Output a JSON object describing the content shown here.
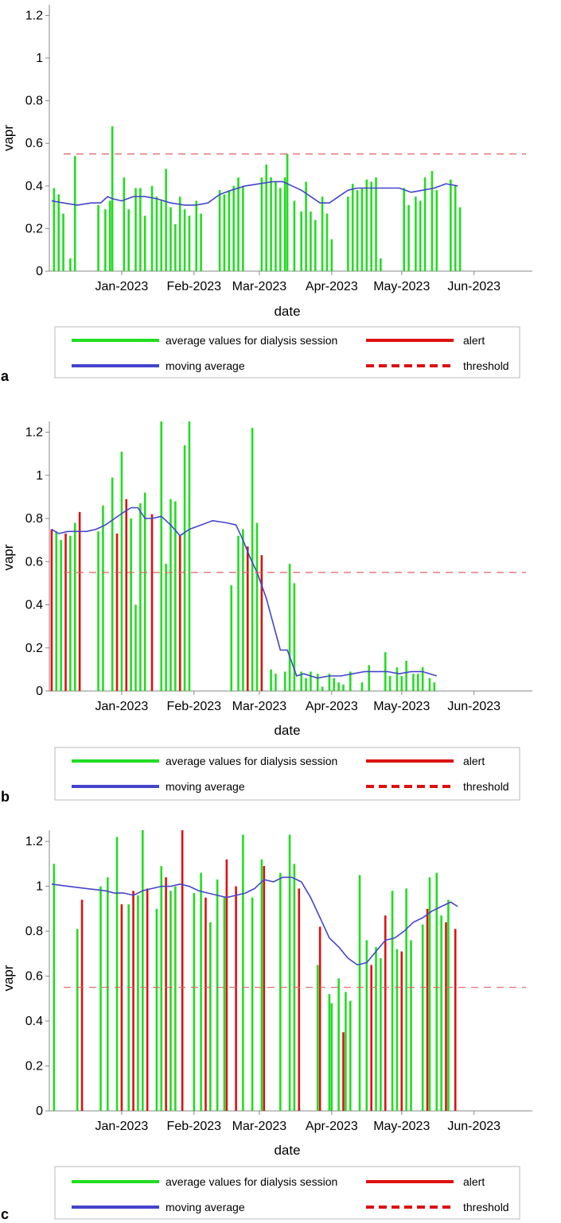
{
  "colors": {
    "session": "#22dd22",
    "alert": "#dd1111",
    "moving_average": "#4444cc",
    "threshold": "#e06060",
    "axis": "#888888"
  },
  "legend": {
    "session_label": "average values for dialysis session",
    "alert_label": "alert",
    "moving_average_label": "moving average",
    "threshold_label": "threshold"
  },
  "chart_data": [
    {
      "panel": "a",
      "type": "bar",
      "xlabel": "date",
      "ylabel": "vapr",
      "ylim": [
        0,
        1.25
      ],
      "yticks": [
        0,
        0.2,
        0.4,
        0.6,
        0.8,
        1,
        1.2
      ],
      "ytick_labels": [
        "0",
        "0.2",
        "0.4",
        "0.6",
        "0.8",
        "1",
        "1.2"
      ],
      "xlim": [
        0,
        207
      ],
      "xticks": [
        {
          "x": 31,
          "label": "Jan-2023"
        },
        {
          "x": 62,
          "label": "Feb-2023"
        },
        {
          "x": 90,
          "label": "Mar-2023"
        },
        {
          "x": 121,
          "label": "Apr-2023"
        },
        {
          "x": 151,
          "label": "May-2023"
        },
        {
          "x": 182,
          "label": "Jun-2023"
        }
      ],
      "threshold": 0.55,
      "session_bars": [
        [
          2,
          0.39
        ],
        [
          4,
          0.36
        ],
        [
          6,
          0.27
        ],
        [
          9,
          0.06
        ],
        [
          11,
          0.54
        ],
        [
          21,
          0.31
        ],
        [
          24,
          0.29
        ],
        [
          26,
          0.33
        ],
        [
          27,
          0.68
        ],
        [
          32,
          0.44
        ],
        [
          34,
          0.29
        ],
        [
          37,
          0.39
        ],
        [
          39,
          0.39
        ],
        [
          41,
          0.26
        ],
        [
          44,
          0.4
        ],
        [
          46,
          0.35
        ],
        [
          48,
          0.33
        ],
        [
          50,
          0.48
        ],
        [
          52,
          0.3
        ],
        [
          54,
          0.22
        ],
        [
          56,
          0.35
        ],
        [
          58,
          0.29
        ],
        [
          60,
          0.26
        ],
        [
          63,
          0.33
        ],
        [
          65,
          0.27
        ],
        [
          73,
          0.38
        ],
        [
          75,
          0.36
        ],
        [
          77,
          0.38
        ],
        [
          79,
          0.4
        ],
        [
          81,
          0.44
        ],
        [
          83,
          0.4
        ],
        [
          91,
          0.44
        ],
        [
          93,
          0.5
        ],
        [
          95,
          0.44
        ],
        [
          97,
          0.42
        ],
        [
          99,
          0.39
        ],
        [
          101,
          0.44
        ],
        [
          102,
          0.55
        ],
        [
          105,
          0.33
        ],
        [
          108,
          0.28
        ],
        [
          110,
          0.42
        ],
        [
          112,
          0.28
        ],
        [
          114,
          0.24
        ],
        [
          117,
          0.35
        ],
        [
          119,
          0.27
        ],
        [
          121,
          0.15
        ],
        [
          128,
          0.35
        ],
        [
          130,
          0.41
        ],
        [
          132,
          0.38
        ],
        [
          134,
          0.39
        ],
        [
          136,
          0.43
        ],
        [
          138,
          0.42
        ],
        [
          140,
          0.44
        ],
        [
          142,
          0.06
        ],
        [
          152,
          0.39
        ],
        [
          154,
          0.31
        ],
        [
          157,
          0.35
        ],
        [
          159,
          0.33
        ],
        [
          161,
          0.44
        ],
        [
          164,
          0.47
        ],
        [
          166,
          0.38
        ],
        [
          172,
          0.43
        ],
        [
          174,
          0.4
        ],
        [
          176,
          0.3
        ]
      ],
      "alert_bars": [],
      "moving_average": {
        "x": [
          1,
          6,
          12,
          18,
          22,
          25,
          27,
          31,
          36,
          41,
          46,
          52,
          58,
          63,
          68,
          73,
          78,
          84,
          90,
          96,
          100,
          104,
          108,
          112,
          116,
          120,
          124,
          128,
          132,
          136,
          140,
          145,
          150,
          155,
          160,
          165,
          170,
          175
        ],
        "y": [
          0.33,
          0.32,
          0.31,
          0.32,
          0.32,
          0.35,
          0.34,
          0.33,
          0.35,
          0.35,
          0.34,
          0.32,
          0.31,
          0.31,
          0.32,
          0.36,
          0.38,
          0.4,
          0.41,
          0.42,
          0.42,
          0.4,
          0.38,
          0.35,
          0.32,
          0.32,
          0.35,
          0.38,
          0.39,
          0.39,
          0.39,
          0.39,
          0.39,
          0.37,
          0.38,
          0.39,
          0.41,
          0.4
        ]
      },
      "legend_position": "bottom"
    },
    {
      "panel": "b",
      "type": "bar",
      "xlabel": "date",
      "ylabel": "vapr",
      "ylim": [
        0,
        1.25
      ],
      "yticks": [
        0,
        0.2,
        0.4,
        0.6,
        0.8,
        1,
        1.2
      ],
      "ytick_labels": [
        "0",
        "0.2",
        "0.4",
        "0.6",
        "0.8",
        "1",
        "1.2"
      ],
      "xlim": [
        0,
        207
      ],
      "xticks": [
        {
          "x": 31,
          "label": "Jan-2023"
        },
        {
          "x": 62,
          "label": "Feb-2023"
        },
        {
          "x": 90,
          "label": "Mar-2023"
        },
        {
          "x": 121,
          "label": "Apr-2023"
        },
        {
          "x": 151,
          "label": "May-2023"
        },
        {
          "x": 182,
          "label": "Jun-2023"
        }
      ],
      "threshold": 0.55,
      "session_bars": [
        [
          3,
          0.74
        ],
        [
          5,
          0.7
        ],
        [
          9,
          0.72
        ],
        [
          11,
          0.78
        ],
        [
          21,
          0.74
        ],
        [
          23,
          0.86
        ],
        [
          27,
          0.99
        ],
        [
          31,
          1.11
        ],
        [
          35,
          0.8
        ],
        [
          37,
          0.4
        ],
        [
          39,
          0.87
        ],
        [
          41,
          0.92
        ],
        [
          48,
          1.25
        ],
        [
          50,
          0.59
        ],
        [
          52,
          0.89
        ],
        [
          54,
          0.88
        ],
        [
          58,
          1.14
        ],
        [
          60,
          1.25
        ],
        [
          78,
          0.49
        ],
        [
          81,
          0.72
        ],
        [
          83,
          0.75
        ],
        [
          85,
          0.66
        ],
        [
          87,
          1.22
        ],
        [
          89,
          0.78
        ],
        [
          95,
          0.1
        ],
        [
          97,
          0.08
        ],
        [
          101,
          0.09
        ],
        [
          103,
          0.59
        ],
        [
          105,
          0.5
        ],
        [
          108,
          0.09
        ],
        [
          110,
          0.06
        ],
        [
          112,
          0.09
        ],
        [
          115,
          0.08
        ],
        [
          117,
          0.02
        ],
        [
          120,
          0.08
        ],
        [
          122,
          0.06
        ],
        [
          124,
          0.04
        ],
        [
          126,
          0.03
        ],
        [
          129,
          0.09
        ],
        [
          134,
          0.04
        ],
        [
          137,
          0.12
        ],
        [
          144,
          0.18
        ],
        [
          146,
          0.07
        ],
        [
          149,
          0.11
        ],
        [
          151,
          0.07
        ],
        [
          153,
          0.14
        ],
        [
          156,
          0.08
        ],
        [
          158,
          0.08
        ],
        [
          160,
          0.11
        ],
        [
          163,
          0.06
        ],
        [
          165,
          0.04
        ]
      ],
      "alert_bars": [
        [
          1,
          0.75
        ],
        [
          7,
          0.73
        ],
        [
          13,
          0.83
        ],
        [
          29,
          0.73
        ],
        [
          33,
          0.89
        ],
        [
          44,
          0.82
        ],
        [
          56,
          0.72
        ],
        [
          85,
          0.67
        ],
        [
          91,
          0.63
        ]
      ],
      "moving_average": {
        "x": [
          1,
          4,
          8,
          12,
          16,
          20,
          24,
          28,
          32,
          35,
          38,
          41,
          44,
          48,
          52,
          56,
          60,
          65,
          70,
          76,
          80,
          83,
          86,
          89,
          93,
          96,
          99,
          102,
          106,
          109,
          112,
          115,
          120,
          125,
          130,
          135,
          140,
          145,
          150,
          155,
          160,
          166
        ],
        "y": [
          0.75,
          0.73,
          0.74,
          0.74,
          0.74,
          0.75,
          0.77,
          0.8,
          0.83,
          0.85,
          0.85,
          0.8,
          0.8,
          0.81,
          0.77,
          0.72,
          0.75,
          0.77,
          0.79,
          0.78,
          0.77,
          0.7,
          0.62,
          0.55,
          0.43,
          0.31,
          0.19,
          0.19,
          0.07,
          0.08,
          0.07,
          0.06,
          0.07,
          0.07,
          0.08,
          0.09,
          0.09,
          0.09,
          0.08,
          0.09,
          0.09,
          0.07
        ]
      },
      "legend_position": "bottom"
    },
    {
      "panel": "c",
      "type": "bar",
      "xlabel": "date",
      "ylabel": "vapr",
      "ylim": [
        0,
        1.25
      ],
      "yticks": [
        0,
        0.2,
        0.4,
        0.6,
        0.8,
        1,
        1.2
      ],
      "ytick_labels": [
        "0",
        "0.2",
        "0.4",
        "0.6",
        "0.8",
        "1",
        "1.2"
      ],
      "xlim": [
        0,
        207
      ],
      "xticks": [
        {
          "x": 31,
          "label": "Jan-2023"
        },
        {
          "x": 62,
          "label": "Feb-2023"
        },
        {
          "x": 90,
          "label": "Mar-2023"
        },
        {
          "x": 121,
          "label": "Apr-2023"
        },
        {
          "x": 151,
          "label": "May-2023"
        },
        {
          "x": 182,
          "label": "Jun-2023"
        }
      ],
      "threshold": 0.55,
      "session_bars": [
        [
          2,
          1.1
        ],
        [
          12,
          0.81
        ],
        [
          22,
          1.0
        ],
        [
          25,
          1.04
        ],
        [
          29,
          1.22
        ],
        [
          34,
          0.92
        ],
        [
          38,
          0.96
        ],
        [
          40,
          1.25
        ],
        [
          46,
          0.9
        ],
        [
          48,
          1.09
        ],
        [
          52,
          0.98
        ],
        [
          54,
          1.0
        ],
        [
          62,
          0.97
        ],
        [
          65,
          1.06
        ],
        [
          69,
          0.84
        ],
        [
          72,
          1.03
        ],
        [
          75,
          0.95
        ],
        [
          83,
          1.23
        ],
        [
          87,
          0.95
        ],
        [
          91,
          1.12
        ],
        [
          99,
          1.06
        ],
        [
          103,
          1.23
        ],
        [
          105,
          1.1
        ],
        [
          115,
          0.65
        ],
        [
          120,
          0.52
        ],
        [
          121,
          0.48
        ],
        [
          124,
          0.59
        ],
        [
          127,
          0.53
        ],
        [
          129,
          0.49
        ],
        [
          133,
          1.05
        ],
        [
          136,
          0.76
        ],
        [
          140,
          0.73
        ],
        [
          142,
          0.68
        ],
        [
          147,
          0.98
        ],
        [
          149,
          0.72
        ],
        [
          153,
          0.99
        ],
        [
          155,
          0.76
        ],
        [
          160,
          0.83
        ],
        [
          163,
          1.04
        ],
        [
          166,
          1.06
        ],
        [
          168,
          0.87
        ],
        [
          171,
          0.94
        ]
      ],
      "alert_bars": [
        [
          14,
          0.94
        ],
        [
          31,
          0.92
        ],
        [
          36,
          0.98
        ],
        [
          42,
          0.99
        ],
        [
          50,
          1.04
        ],
        [
          57,
          1.25
        ],
        [
          67,
          0.95
        ],
        [
          76,
          1.12
        ],
        [
          80,
          1.0
        ],
        [
          92,
          1.09
        ],
        [
          107,
          0.99
        ],
        [
          116,
          0.82
        ],
        [
          126,
          0.35
        ],
        [
          138,
          0.65
        ],
        [
          144,
          0.87
        ],
        [
          151,
          0.71
        ],
        [
          162,
          0.9
        ],
        [
          170,
          0.84
        ],
        [
          174,
          0.81
        ]
      ],
      "moving_average": {
        "x": [
          1,
          8,
          16,
          24,
          28,
          32,
          36,
          40,
          44,
          48,
          52,
          56,
          60,
          64,
          68,
          72,
          76,
          80,
          84,
          88,
          92,
          96,
          100,
          104,
          108,
          112,
          116,
          120,
          124,
          128,
          132,
          136,
          140,
          144,
          148,
          152,
          156,
          160,
          164,
          168,
          172,
          175
        ],
        "y": [
          1.01,
          1.0,
          0.99,
          0.98,
          0.97,
          0.97,
          0.96,
          0.98,
          0.99,
          1.0,
          1.0,
          1.01,
          1.0,
          0.98,
          0.97,
          0.96,
          0.95,
          0.96,
          0.97,
          0.99,
          1.03,
          1.02,
          1.04,
          1.04,
          1.02,
          0.95,
          0.86,
          0.77,
          0.73,
          0.68,
          0.65,
          0.66,
          0.71,
          0.76,
          0.77,
          0.8,
          0.84,
          0.86,
          0.89,
          0.91,
          0.93,
          0.91
        ]
      },
      "legend_position": "bottom"
    }
  ]
}
